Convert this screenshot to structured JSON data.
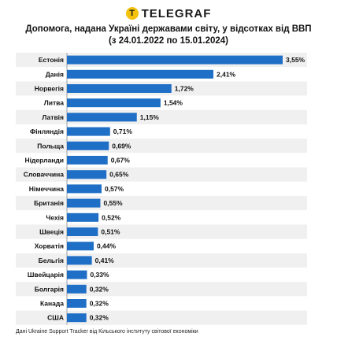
{
  "brand": {
    "logo_glyph": "T",
    "name": "TELEGRAF",
    "logo_icon": "telegraf-logo-icon",
    "logo_color": "#f4c20d"
  },
  "title_line1": "Допомога, надана Україні державами світу, у відсотках від ВВП",
  "title_line2": "(з 24.01.2022 по 15.01.2024)",
  "footnote": "Дані Ukraine Support Tracker від Кільського інституту світової економіки",
  "chart_data": {
    "type": "bar",
    "orientation": "horizontal",
    "title": "Допомога, надана Україні державами світу, у відсотках від ВВП (з 24.01.2022 по 15.01.2024)",
    "categories": [
      "Естонія",
      "Данія",
      "Норвегія",
      "Литва",
      "Латвія",
      "Фінляндія",
      "Польща",
      "Нідерланди",
      "Словаччина",
      "Німеччина",
      "Британія",
      "Чехія",
      "Швеція",
      "Хорватія",
      "Бельгія",
      "Швейцарія",
      "Болгарія",
      "Канада",
      "США"
    ],
    "values": [
      3.55,
      2.41,
      1.72,
      1.54,
      1.15,
      0.71,
      0.69,
      0.67,
      0.65,
      0.57,
      0.55,
      0.52,
      0.51,
      0.44,
      0.41,
      0.33,
      0.32,
      0.32,
      0.32
    ],
    "value_labels": [
      "3,55%",
      "2,41%",
      "1,72%",
      "1,54%",
      "1,15%",
      "0,71%",
      "0,69%",
      "0,67%",
      "0,65%",
      "0,57%",
      "0,55%",
      "0,52%",
      "0,51%",
      "0,44%",
      "0,41%",
      "0,33%",
      "0,32%",
      "0,32%",
      "0,32%"
    ],
    "xlim": [
      0,
      4
    ],
    "bar_color": "#1f6fc6",
    "row_stripe_color": "#f0f0f0",
    "axis_line_color": "#9aa0a6",
    "grid": false
  }
}
